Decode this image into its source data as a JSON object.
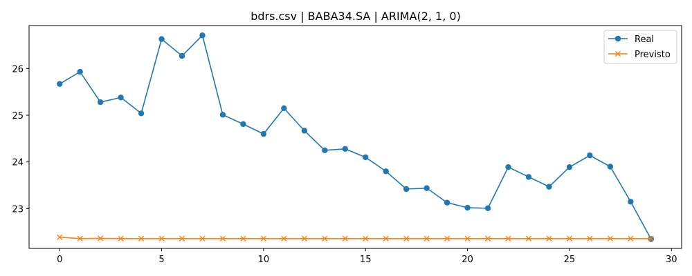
{
  "chart_data": {
    "type": "line",
    "title": "bdrs.csv | BABA34.SA | ARIMA(2, 1, 0)",
    "xlabel": "",
    "ylabel": "",
    "xlim": [
      -1.5,
      30.5
    ],
    "ylim": [
      22.15,
      26.92
    ],
    "xticks": [
      0,
      5,
      10,
      15,
      20,
      25,
      30
    ],
    "yticks": [
      23,
      24,
      25,
      26
    ],
    "grid": false,
    "legend_position": "top-right",
    "x": [
      0,
      1,
      2,
      3,
      4,
      5,
      6,
      7,
      8,
      9,
      10,
      11,
      12,
      13,
      14,
      15,
      16,
      17,
      18,
      19,
      20,
      21,
      22,
      23,
      24,
      25,
      26,
      27,
      28,
      29
    ],
    "series": [
      {
        "name": "Real",
        "color": "#1f77b4",
        "marker": "circle",
        "values": [
          25.67,
          25.93,
          25.28,
          25.38,
          25.04,
          26.63,
          26.27,
          26.71,
          25.01,
          24.81,
          24.6,
          25.15,
          24.67,
          24.25,
          24.28,
          24.1,
          23.8,
          23.42,
          23.44,
          23.13,
          23.02,
          23.01,
          23.89,
          23.68,
          23.47,
          23.89,
          24.14,
          23.9,
          23.15,
          22.35
        ]
      },
      {
        "name": "Previsto",
        "color": "#ff7f0e",
        "marker": "x",
        "values": [
          22.39,
          22.36,
          22.365,
          22.36,
          22.36,
          22.36,
          22.36,
          22.36,
          22.36,
          22.36,
          22.36,
          22.36,
          22.36,
          22.36,
          22.36,
          22.36,
          22.36,
          22.36,
          22.36,
          22.36,
          22.36,
          22.36,
          22.36,
          22.36,
          22.36,
          22.36,
          22.36,
          22.36,
          22.36,
          22.36
        ]
      }
    ]
  }
}
